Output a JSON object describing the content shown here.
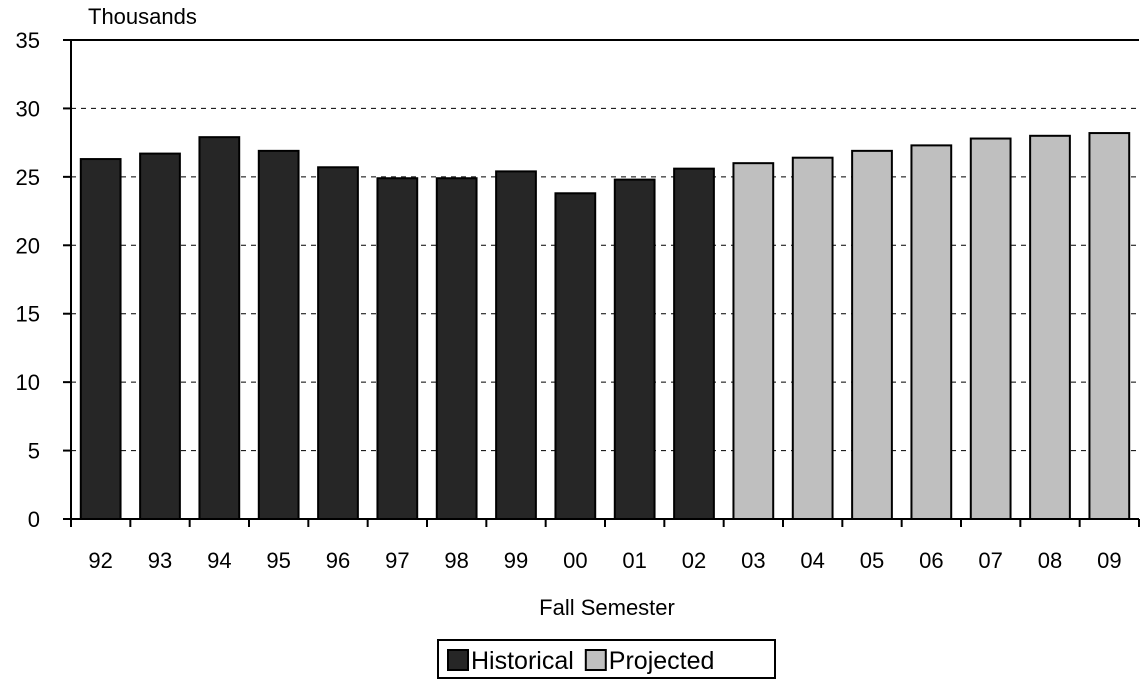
{
  "chart_data": {
    "type": "bar",
    "unit_label": "Thousands",
    "xlabel": "Fall Semester",
    "ylabel": "",
    "ylim": [
      0,
      35
    ],
    "yticks": [
      0,
      5,
      10,
      15,
      20,
      25,
      30,
      35
    ],
    "grid": "dashed horizontal",
    "legend_position": "bottom-center",
    "categories": [
      "92",
      "93",
      "94",
      "95",
      "96",
      "97",
      "98",
      "99",
      "00",
      "01",
      "02",
      "03",
      "04",
      "05",
      "06",
      "07",
      "08",
      "09"
    ],
    "series": [
      {
        "name": "Historical",
        "color": "#262626",
        "values": [
          26.3,
          26.7,
          27.9,
          26.9,
          25.7,
          24.9,
          24.9,
          25.4,
          23.8,
          24.8,
          25.6,
          null,
          null,
          null,
          null,
          null,
          null,
          null
        ]
      },
      {
        "name": "Projected",
        "color": "#bfbfbf",
        "values": [
          null,
          null,
          null,
          null,
          null,
          null,
          null,
          null,
          null,
          null,
          null,
          26.0,
          26.4,
          26.9,
          27.3,
          27.8,
          28.0,
          28.2
        ]
      }
    ]
  }
}
